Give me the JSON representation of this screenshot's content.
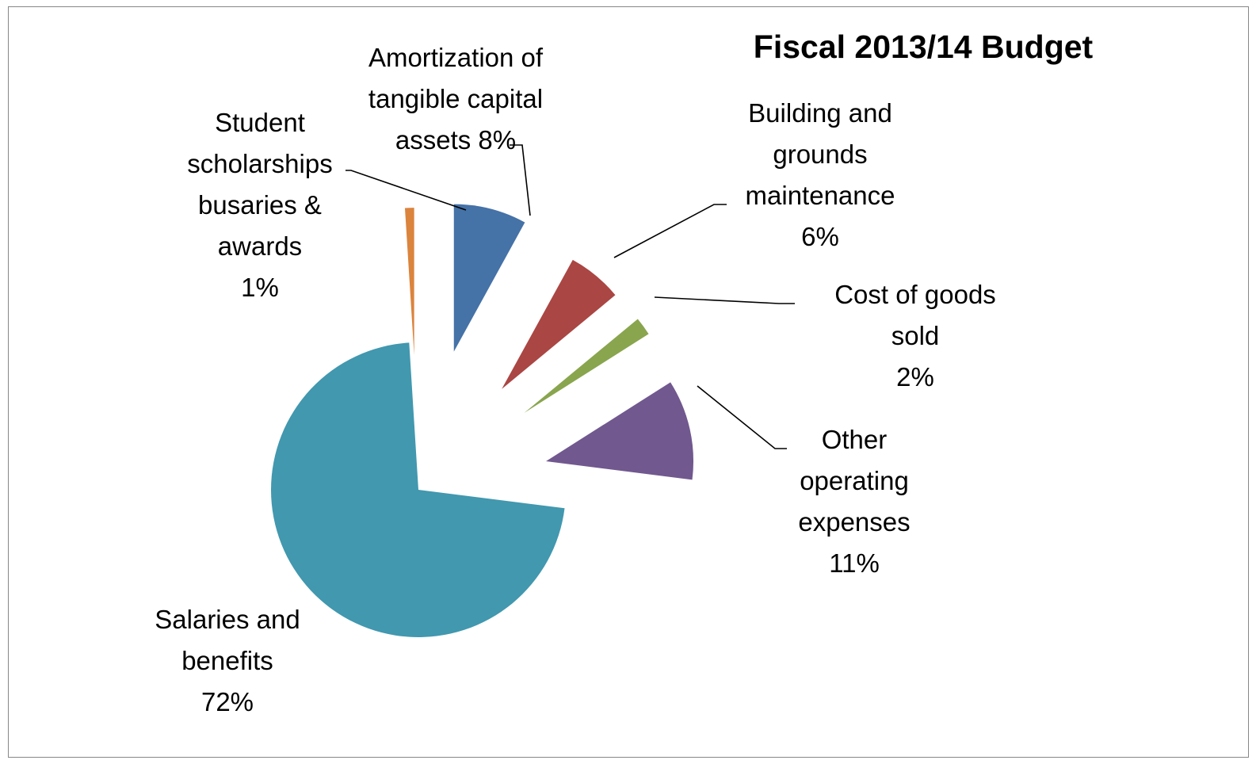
{
  "chart_data": {
    "type": "pie",
    "title": "Fiscal 2013/14 Budget",
    "exploded": true,
    "legend": "none",
    "slices": [
      {
        "name": "Amortization of tangible capital assets",
        "value": 8,
        "label_lines": [
          "Amortization of",
          "tangible capital",
          "assets 8%"
        ],
        "color": "#4572A7"
      },
      {
        "name": "Building and grounds maintenance",
        "value": 6,
        "label_lines": [
          "Building and",
          "grounds",
          "maintenance",
          "6%"
        ],
        "color": "#AA4643"
      },
      {
        "name": "Cost of goods sold",
        "value": 2,
        "label_lines": [
          "Cost of goods",
          "sold",
          "2%"
        ],
        "color": "#89A54E"
      },
      {
        "name": "Other operating expenses",
        "value": 11,
        "label_lines": [
          "Other",
          "operating",
          "expenses",
          "11%"
        ],
        "color": "#71588F"
      },
      {
        "name": "Salaries and benefits",
        "value": 72,
        "label_lines": [
          "Salaries and",
          "benefits",
          "72%"
        ],
        "color": "#4198AF"
      },
      {
        "name": "Student scholarships busaries & awards",
        "value": 1,
        "label_lines": [
          "Student",
          "scholarships",
          "busaries &",
          "awards",
          "1%"
        ],
        "color": "#DB843D"
      }
    ]
  }
}
